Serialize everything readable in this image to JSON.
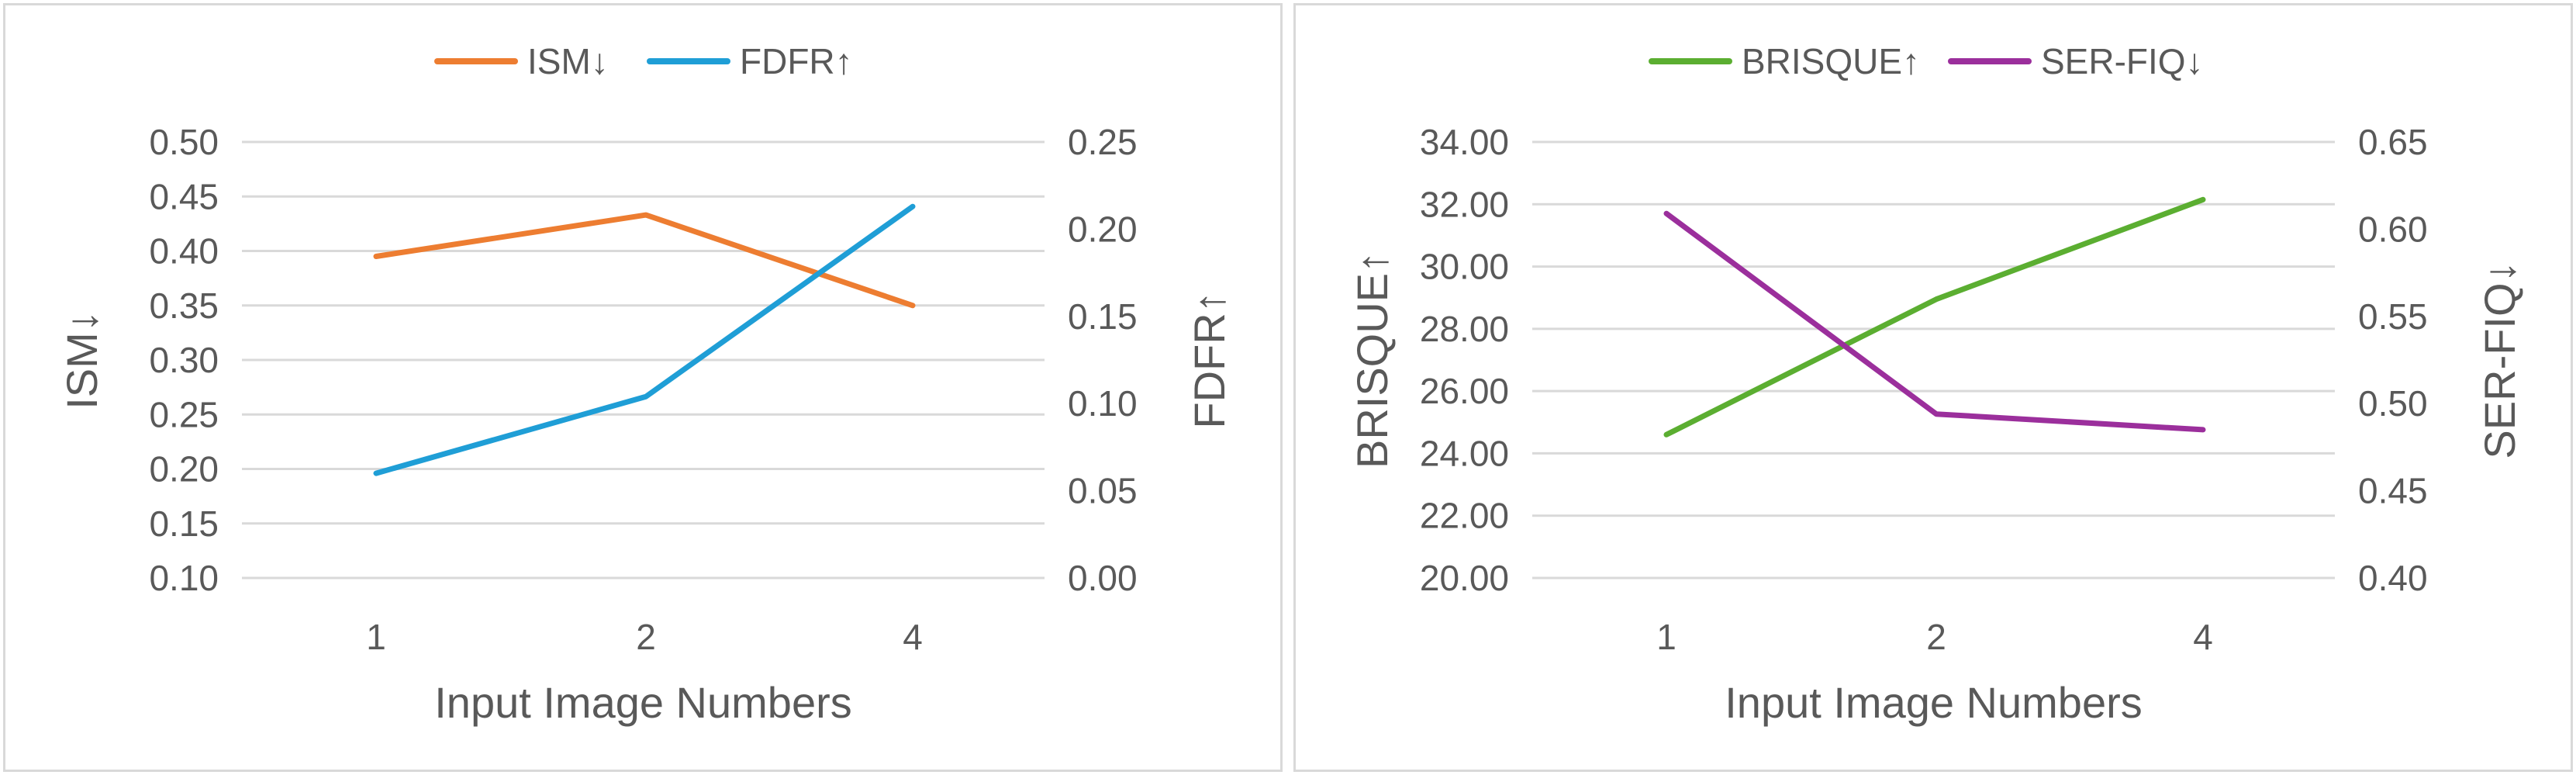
{
  "chart_data": [
    {
      "type": "line",
      "categories": [
        "1",
        "2",
        "4"
      ],
      "xlabel": "Input Image Numbers",
      "ylabel_left": "ISM↓",
      "ylabel_right": "FDFR↑",
      "ylim_left": [
        0.1,
        0.5
      ],
      "ylim_right": [
        0.0,
        0.25
      ],
      "yticks_left": [
        "0.10",
        "0.15",
        "0.20",
        "0.25",
        "0.30",
        "0.35",
        "0.40",
        "0.45",
        "0.50"
      ],
      "yticks_right": [
        "0.00",
        "0.05",
        "0.10",
        "0.15",
        "0.20",
        "0.25"
      ],
      "grid": true,
      "legend_position": "top-center",
      "series": [
        {
          "name": "ISM↓",
          "axis": "left",
          "color": "#ED7D31",
          "values": [
            0.395,
            0.433,
            0.35
          ]
        },
        {
          "name": "FDFR↑",
          "axis": "right",
          "color": "#1F9ED6",
          "values": [
            0.06,
            0.104,
            0.213
          ]
        }
      ]
    },
    {
      "type": "line",
      "categories": [
        "1",
        "2",
        "4"
      ],
      "xlabel": "Input Image Numbers",
      "ylabel_left": "BRISQUE↑",
      "ylabel_right": "SER-FIQ↓",
      "ylim_left": [
        20.0,
        34.0
      ],
      "ylim_right": [
        0.4,
        0.65
      ],
      "yticks_left": [
        "20.00",
        "22.00",
        "24.00",
        "26.00",
        "28.00",
        "30.00",
        "32.00",
        "34.00"
      ],
      "yticks_right": [
        "0.40",
        "0.45",
        "0.50",
        "0.55",
        "0.60",
        "0.65"
      ],
      "grid": true,
      "legend_position": "top-center",
      "series": [
        {
          "name": "BRISQUE↑",
          "axis": "left",
          "color": "#5BAE31",
          "values": [
            24.6,
            28.95,
            32.15
          ]
        },
        {
          "name": "SER-FIQ↓",
          "axis": "right",
          "color": "#9B2F9C",
          "values": [
            0.609,
            0.494,
            0.485
          ]
        }
      ]
    }
  ]
}
